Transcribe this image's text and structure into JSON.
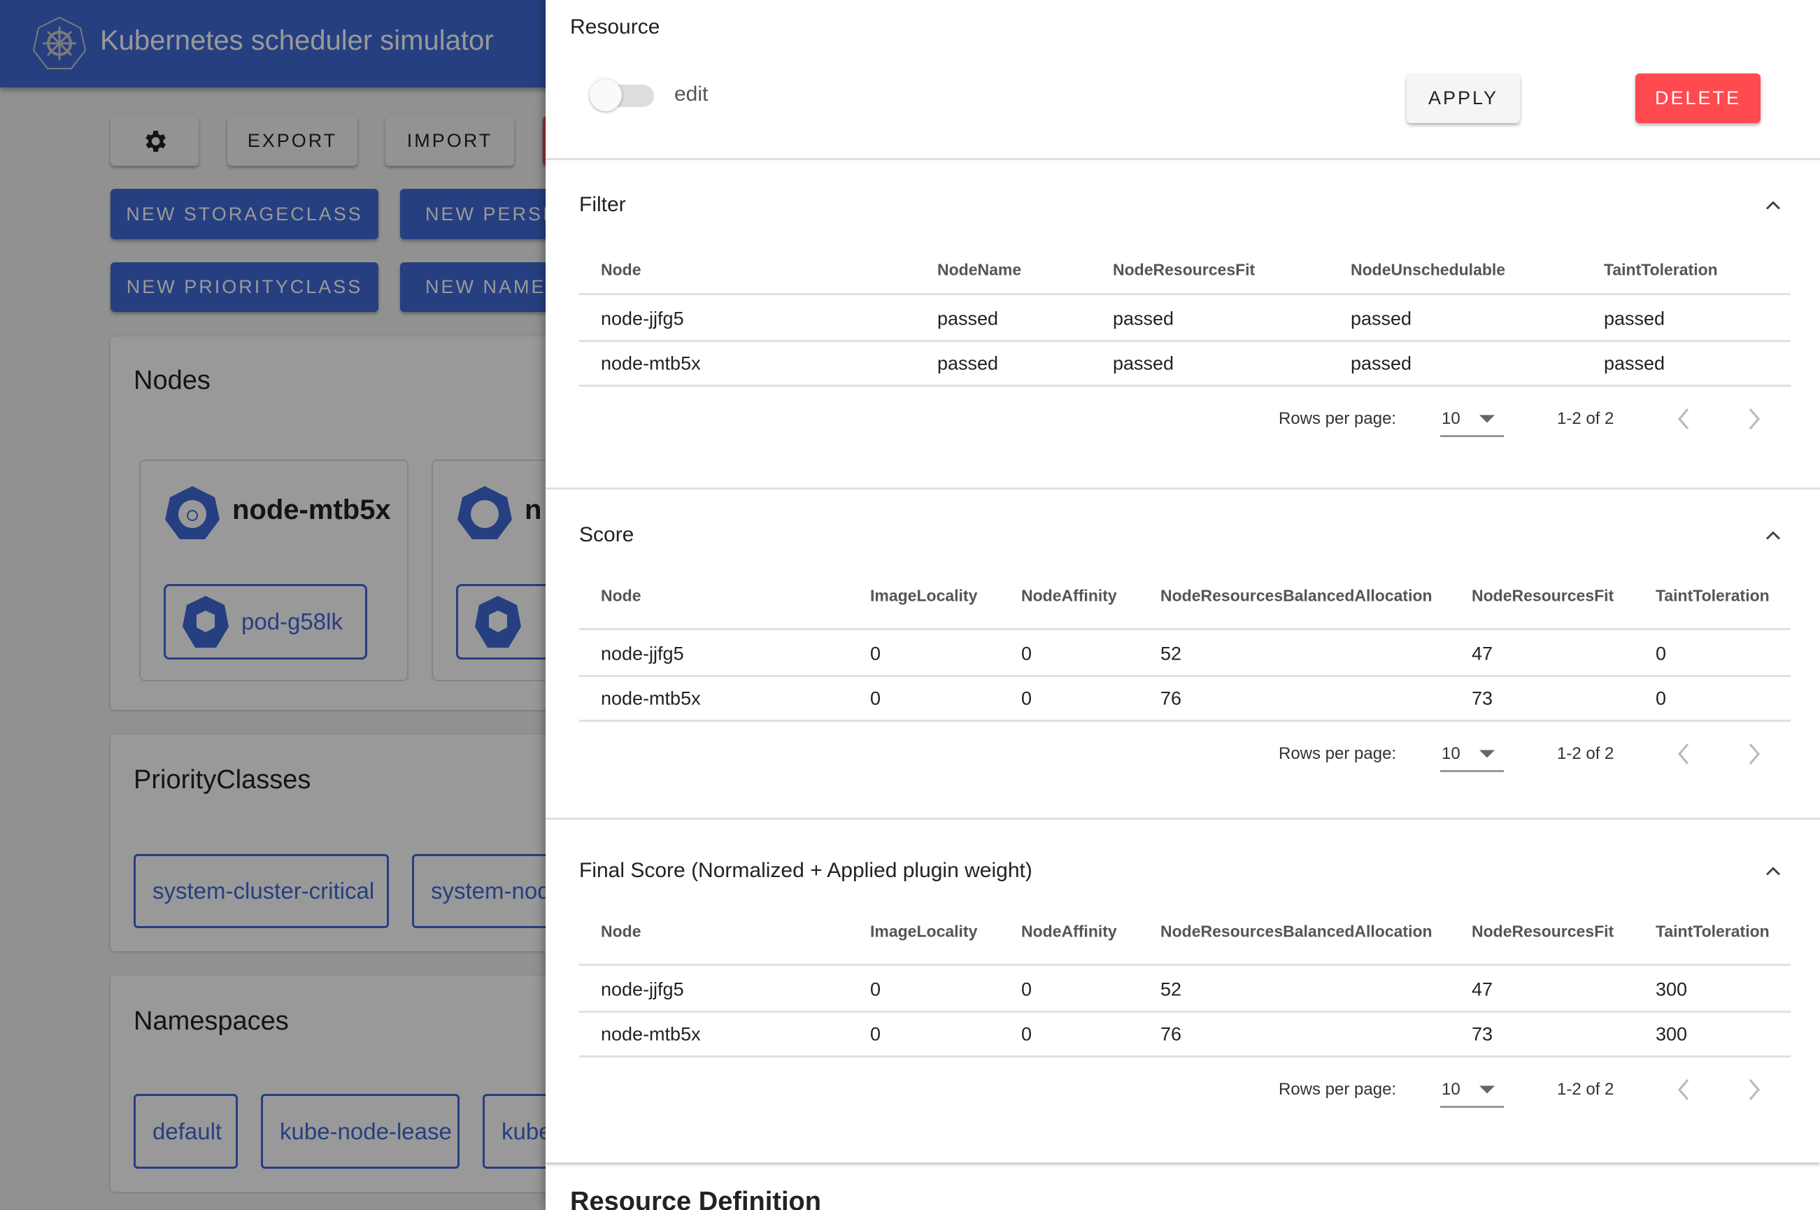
{
  "app": {
    "title": "Kubernetes scheduler simulator",
    "colors": {
      "primary": "#3f6ad8",
      "danger": "#ff4a4f"
    }
  },
  "toolbar": {
    "settings_icon": "gear-icon",
    "export_label": "EXPORT",
    "import_label": "IMPORT"
  },
  "create_buttons": [
    "NEW STORAGECLASS",
    "NEW PERSIS",
    "NEW PRIORITYCLASS",
    "NEW NAMES"
  ],
  "nodes": {
    "title": "Nodes",
    "cards": [
      {
        "name": "node-mtb5x",
        "pods": [
          "pod-g58lk"
        ]
      },
      {
        "name": "n",
        "pods": [
          ""
        ]
      }
    ]
  },
  "priority_classes": {
    "title": "PriorityClasses",
    "items": [
      "system-cluster-critical",
      "system-nod"
    ]
  },
  "namespaces": {
    "title": "Namespaces",
    "items": [
      "default",
      "kube-node-lease",
      "kube"
    ]
  },
  "drawer": {
    "title": "Resource",
    "edit_label": "edit",
    "edit_enabled": false,
    "apply_label": "APPLY",
    "delete_label": "DELETE",
    "resource_definition_title": "Resource Definition",
    "sections": [
      {
        "title": "Filter",
        "columns": [
          "Node",
          "NodeName",
          "NodeResourcesFit",
          "NodeUnschedulable",
          "TaintToleration"
        ],
        "rows": [
          [
            "node-jjfg5",
            "passed",
            "passed",
            "passed",
            "passed"
          ],
          [
            "node-mtb5x",
            "passed",
            "passed",
            "passed",
            "passed"
          ]
        ],
        "pagination": {
          "rows_per_page_label": "Rows per page:",
          "rows_per_page": "10",
          "range": "1-2 of 2"
        }
      },
      {
        "title": "Score",
        "columns": [
          "Node",
          "ImageLocality",
          "NodeAffinity",
          "NodeResourcesBalancedAllocation",
          "NodeResourcesFit",
          "TaintToleration"
        ],
        "rows": [
          [
            "node-jjfg5",
            "0",
            "0",
            "52",
            "47",
            "0"
          ],
          [
            "node-mtb5x",
            "0",
            "0",
            "76",
            "73",
            "0"
          ]
        ],
        "pagination": {
          "rows_per_page_label": "Rows per page:",
          "rows_per_page": "10",
          "range": "1-2 of 2"
        }
      },
      {
        "title": "Final Score (Normalized + Applied plugin weight)",
        "columns": [
          "Node",
          "ImageLocality",
          "NodeAffinity",
          "NodeResourcesBalancedAllocation",
          "NodeResourcesFit",
          "TaintToleration"
        ],
        "rows": [
          [
            "node-jjfg5",
            "0",
            "0",
            "52",
            "47",
            "300"
          ],
          [
            "node-mtb5x",
            "0",
            "0",
            "76",
            "73",
            "300"
          ]
        ],
        "pagination": {
          "rows_per_page_label": "Rows per page:",
          "rows_per_page": "10",
          "range": "1-2 of 2"
        }
      }
    ]
  }
}
